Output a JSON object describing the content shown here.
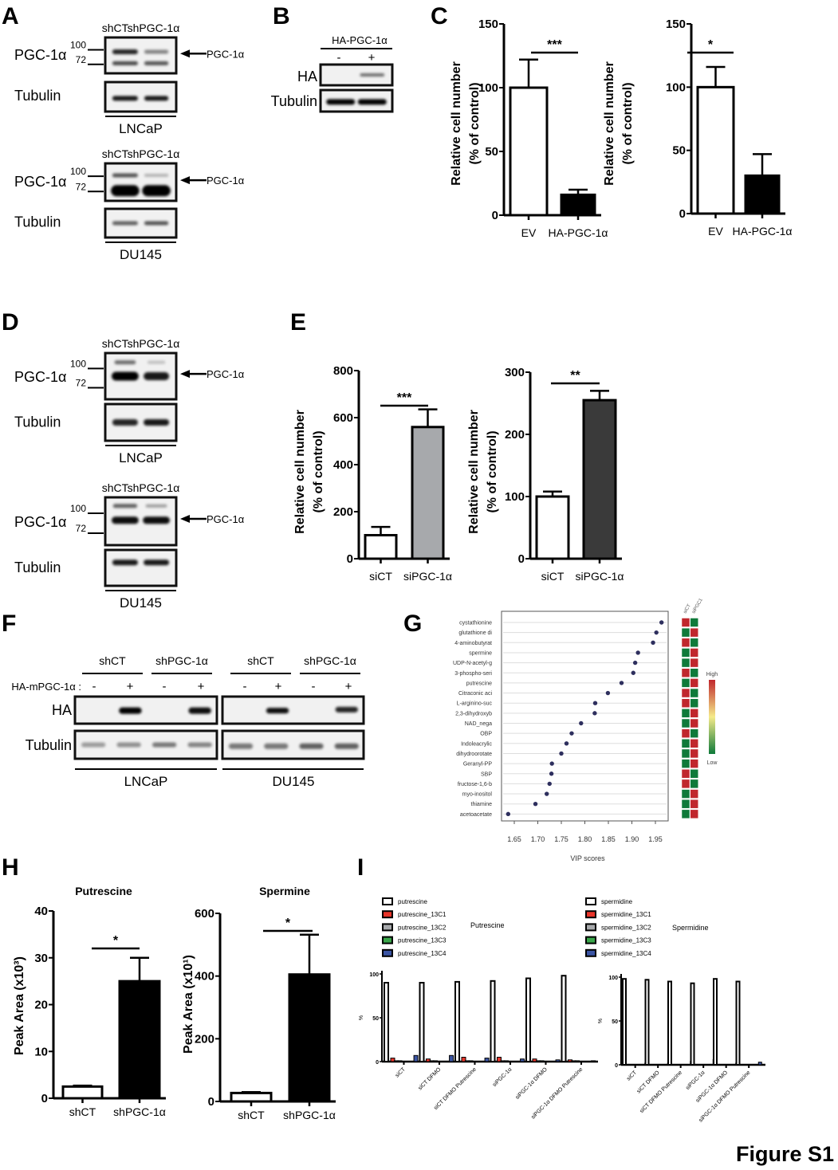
{
  "figure_label": "Figure S1",
  "panel_letters": [
    "A",
    "B",
    "C",
    "D",
    "E",
    "F",
    "G",
    "H",
    "I"
  ],
  "blots": {
    "A_lncap": {
      "lanes_header": "shCTshPGC-1α",
      "row1": "PGC-1α",
      "row2": "Tubulin",
      "marker_high": "100",
      "marker_low": "72",
      "arrow_label": "PGC-1α",
      "cell_line": "LNCaP"
    },
    "A_du145": {
      "lanes_header": "shCTshPGC-1α",
      "row1": "PGC-1α",
      "row2": "Tubulin",
      "marker_high": "100",
      "marker_low": "72",
      "arrow_label": "PGC-1α",
      "cell_line": "DU145"
    },
    "D_lncap": {
      "lanes_header": "shCTshPGC-1α",
      "row1": "PGC-1α",
      "row2": "Tubulin",
      "marker_high": "100",
      "marker_low": "72",
      "arrow_label": "PGC-1α",
      "cell_line": "LNCaP"
    },
    "D_du145": {
      "lanes_header": "shCTshPGC-1α",
      "row1": "PGC-1α",
      "row2": "Tubulin",
      "marker_high": "100",
      "marker_low": "72",
      "arrow_label": "PGC-1α",
      "cell_line": "DU145"
    },
    "B": {
      "header": "HA-PGC-1α",
      "lanes": [
        "-",
        "+"
      ],
      "row1": "HA",
      "row2": "Tubulin"
    },
    "F": {
      "treatment_label": "HA-mPGC-1α :",
      "groups": [
        "shCT",
        "shPGC-1α",
        "shCT",
        "shPGC-1α"
      ],
      "lanes": [
        "-",
        "+",
        "-",
        "+",
        "-",
        "+",
        "-",
        "+"
      ],
      "row1": "HA",
      "row2": "Tubulin",
      "cell_lines": [
        "LNCaP",
        "DU145"
      ]
    }
  },
  "chart_data": [
    {
      "id": "C1",
      "type": "bar",
      "ylabel": [
        "Relative cell number",
        "(% of control)"
      ],
      "categories": [
        "EV",
        "HA-PGC-1α"
      ],
      "values": [
        100,
        16
      ],
      "errors": [
        22,
        4
      ],
      "ylim": [
        0,
        150
      ],
      "yticks": [
        "0",
        "50",
        "100",
        "150"
      ],
      "significance": "***",
      "fills": [
        "#ffffff",
        "#000000"
      ]
    },
    {
      "id": "C2",
      "type": "bar",
      "ylabel": [
        "Relative cell number",
        "(% of control)"
      ],
      "categories": [
        "EV",
        "HA-PGC-1α"
      ],
      "values": [
        100,
        30
      ],
      "errors": [
        16,
        17
      ],
      "ylim": [
        0,
        150
      ],
      "yticks": [
        "0",
        "50",
        "100",
        "150"
      ],
      "significance": "*",
      "fills": [
        "#ffffff",
        "#000000"
      ]
    },
    {
      "id": "E1",
      "type": "bar",
      "ylabel": [
        "Relative cell number",
        "(% of control)"
      ],
      "categories": [
        "siCT",
        "siPGC-1α"
      ],
      "values": [
        100,
        560
      ],
      "errors": [
        35,
        75
      ],
      "ylim": [
        0,
        800
      ],
      "yticks": [
        "0",
        "200",
        "400",
        "600",
        "800"
      ],
      "significance": "***",
      "fills": [
        "#ffffff",
        "#a7a9ac"
      ]
    },
    {
      "id": "E2",
      "type": "bar",
      "ylabel": [
        "Relative cell number",
        "(% of control)"
      ],
      "categories": [
        "siCT",
        "siPGC-1α"
      ],
      "values": [
        100,
        255
      ],
      "errors": [
        8,
        15
      ],
      "ylim": [
        0,
        300
      ],
      "yticks": [
        "0",
        "100",
        "200",
        "300"
      ],
      "significance": "**",
      "fills": [
        "#ffffff",
        "#3a3a3a"
      ]
    },
    {
      "id": "H1",
      "type": "bar",
      "title": "Putrescine",
      "ylabel": [
        "Peak Area (x10³)"
      ],
      "categories": [
        "shCT",
        "shPGC-1α"
      ],
      "values": [
        2.5,
        25
      ],
      "errors": [
        0.2,
        5
      ],
      "ylim": [
        0,
        40
      ],
      "yticks": [
        "0",
        "10",
        "20",
        "30",
        "40"
      ],
      "significance": "*",
      "fills": [
        "#ffffff",
        "#000000"
      ]
    },
    {
      "id": "H2",
      "type": "bar",
      "title": "Spermine",
      "ylabel": [
        "Peak Area (x10¹)"
      ],
      "categories": [
        "shCT",
        "shPGC-1α"
      ],
      "values": [
        27,
        405
      ],
      "errors": [
        3,
        127
      ],
      "ylim": [
        0,
        600
      ],
      "yticks": [
        "0",
        "200",
        "400",
        "600"
      ],
      "significance": "*",
      "fills": [
        "#ffffff",
        "#000000"
      ]
    },
    {
      "id": "G",
      "type": "scatter",
      "xlabel": "VIP scores",
      "xlim": [
        1.63,
        1.97
      ],
      "xticks": [
        "1.65",
        "1.70",
        "1.75",
        "1.80",
        "1.85",
        "1.90",
        "1.95"
      ],
      "metabolites": [
        "cystathionine",
        "glutathione di",
        "4-aminobutyrat",
        "spermine",
        "UDP-N-acetyl-g",
        "3-phospho-seri",
        "putrescine",
        "Citraconic aci",
        "L-arginino-suc",
        "2,3-dihydroxyb",
        "NAD_nega",
        "OBP",
        "Indoleacrylic",
        "dihydroorotate",
        "Geranyl-PP",
        "SBP",
        "fructose-1,6-b",
        "myo-inositol",
        "thiamine",
        "acetoacetate"
      ],
      "vip": [
        1.963,
        1.952,
        1.945,
        1.913,
        1.907,
        1.903,
        1.878,
        1.849,
        1.822,
        1.821,
        1.792,
        1.772,
        1.761,
        1.75,
        1.73,
        1.729,
        1.725,
        1.719,
        1.695,
        1.637
      ],
      "heatmap_columns": [
        "siCT",
        "siPGC1"
      ],
      "heatmap": [
        [
          "high",
          "low"
        ],
        [
          "low",
          "high"
        ],
        [
          "high",
          "low"
        ],
        [
          "low",
          "high"
        ],
        [
          "low",
          "high"
        ],
        [
          "high",
          "low"
        ],
        [
          "low",
          "high"
        ],
        [
          "high",
          "low"
        ],
        [
          "high",
          "low"
        ],
        [
          "low",
          "high"
        ],
        [
          "low",
          "high"
        ],
        [
          "high",
          "low"
        ],
        [
          "low",
          "high"
        ],
        [
          "low",
          "high"
        ],
        [
          "low",
          "high"
        ],
        [
          "high",
          "low"
        ],
        [
          "high",
          "low"
        ],
        [
          "low",
          "high"
        ],
        [
          "low",
          "high"
        ],
        [
          "low",
          "high"
        ]
      ],
      "colorbar": {
        "high_label": "High",
        "low_label": "Low",
        "high_color": "#c0272d",
        "mid_color": "#f5ea8a",
        "low_color": "#0f7a3a"
      }
    },
    {
      "id": "I1",
      "type": "bar",
      "title": "Putrescine",
      "ylabel": "%",
      "ylim": [
        0,
        100
      ],
      "yticks": [
        "0",
        "50",
        "100"
      ],
      "categories": [
        "siCT",
        "siCT DFMO",
        "siCT DFMO Putrescine",
        "siPGC-1α",
        "siPGC-1α DFMO",
        "siPGC-1α DFMO Putrescine"
      ],
      "series": [
        {
          "name": "putrescine",
          "color": "#ffffff",
          "values": [
            90,
            90,
            91,
            92,
            95,
            98
          ]
        },
        {
          "name": "putrescine_13C1",
          "color": "#e8352a",
          "values": [
            4,
            3,
            5,
            5,
            3,
            2
          ]
        },
        {
          "name": "putrescine_13C2",
          "color": "#a7a9ac",
          "values": [
            1,
            1,
            1,
            1,
            1,
            1
          ]
        },
        {
          "name": "putrescine_13C3",
          "color": "#3aa64a",
          "values": [
            1,
            1,
            1,
            1,
            1,
            1
          ]
        },
        {
          "name": "putrescine_13C4",
          "color": "#3b55a4",
          "values": [
            7,
            7,
            4,
            3,
            2,
            1
          ]
        }
      ]
    },
    {
      "id": "I2",
      "type": "bar",
      "title": "Spermidine",
      "ylabel": "%",
      "ylim": [
        0,
        100
      ],
      "yticks": [
        "0",
        "50",
        "100"
      ],
      "categories": [
        "siCT",
        "siCT DFMO",
        "siCT DFMO Putrescine",
        "siPGC-1α",
        "siPGC-1α DFMO",
        "siPGC-1α DFMO Putrescine"
      ],
      "series": [
        {
          "name": "spermidine",
          "color": "#ffffff",
          "values": [
            98,
            97,
            95,
            93,
            98,
            95
          ]
        },
        {
          "name": "spermidine_13C1",
          "color": "#e8352a",
          "values": [
            0,
            0,
            0,
            0,
            0,
            0
          ]
        },
        {
          "name": "spermidine_13C2",
          "color": "#a7a9ac",
          "values": [
            0,
            0,
            0,
            0,
            0,
            0
          ]
        },
        {
          "name": "spermidine_13C3",
          "color": "#3aa64a",
          "values": [
            0,
            0,
            0,
            0,
            0,
            0
          ]
        },
        {
          "name": "spermidine_13C4",
          "color": "#3b55a4",
          "values": [
            2,
            2,
            4,
            6,
            2,
            3
          ]
        }
      ]
    }
  ]
}
